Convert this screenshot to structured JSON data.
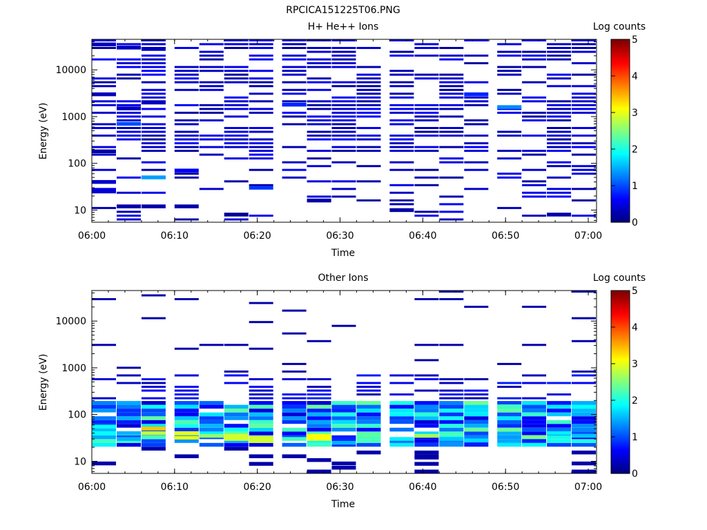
{
  "figure_title": "RPCICA151225T06.PNG",
  "colorbar": {
    "label": "Log counts",
    "min": 0,
    "max": 5,
    "ticks": [
      "0",
      "1",
      "2",
      "3",
      "4",
      "5"
    ]
  },
  "time_ticks": [
    "06:00",
    "06:10",
    "06:20",
    "06:30",
    "06:40",
    "06:50",
    "07:00"
  ],
  "energy_ticks": [
    "10",
    "100",
    "1000",
    "10000"
  ],
  "chart_data": [
    {
      "type": "heatmap",
      "title": "H+ He++ Ions",
      "xlabel": "Time",
      "ylabel": "Energy (eV)",
      "xlim": [
        "06:00",
        "07:01"
      ],
      "ylim": [
        5.5,
        45000
      ],
      "y_scale": "log",
      "z_label": "Log counts",
      "zlim": [
        0,
        5
      ],
      "colormap": "jet",
      "time_bins": [
        "06:00",
        "06:03",
        "06:06",
        "06:10",
        "06:13",
        "06:16",
        "06:19",
        "06:23",
        "06:26",
        "06:29",
        "06:32",
        "06:36",
        "06:39",
        "06:42",
        "06:45",
        "06:49",
        "06:52",
        "06:55",
        "06:58"
      ],
      "cells": [
        {
          "t": 0,
          "e": [
            35000,
            3000
          ],
          "v": 0.3
        },
        {
          "t": 0,
          "e": [
            180
          ],
          "v": 0.2
        },
        {
          "t": 0,
          "e": [
            40,
            25
          ],
          "v": 0.4
        },
        {
          "t": 1,
          "e": [
            30000,
            1500
          ],
          "v": 0.3
        },
        {
          "t": 1,
          "e": [
            700
          ],
          "v": 1.0
        },
        {
          "t": 1,
          "e": [
            12
          ],
          "v": 0.2
        },
        {
          "t": 2,
          "e": [
            28000,
            2000
          ],
          "v": 0.3
        },
        {
          "t": 2,
          "e": [
            50
          ],
          "v": 1.4
        },
        {
          "t": 2,
          "e": [
            12
          ],
          "v": 0.2
        },
        {
          "t": 3,
          "e": [
            70
          ],
          "v": 0.6
        },
        {
          "t": 3,
          "e": [
            12
          ],
          "v": 0.2
        },
        {
          "t": 5,
          "e": [
            8
          ],
          "v": 0.1
        },
        {
          "t": 6,
          "e": [
            30
          ],
          "v": 0.9
        },
        {
          "t": 7,
          "e": [
            1800
          ],
          "v": 0.8
        },
        {
          "t": 8,
          "e": [
            16
          ],
          "v": 0.2
        },
        {
          "t": 11,
          "e": [
            10
          ],
          "v": 0.2
        },
        {
          "t": 14,
          "e": [
            3000
          ],
          "v": 0.8
        },
        {
          "t": 15,
          "e": [
            1600
          ],
          "v": 1.3
        },
        {
          "t": 17,
          "e": [
            8
          ],
          "v": 0.2
        }
      ]
    },
    {
      "type": "heatmap",
      "title": "Other Ions",
      "xlabel": "Time",
      "ylabel": "Energy (eV)",
      "xlim": [
        "06:00",
        "07:01"
      ],
      "ylim": [
        5.5,
        45000
      ],
      "y_scale": "log",
      "z_label": "Log counts",
      "zlim": [
        0,
        5
      ],
      "colormap": "jet",
      "time_bins": [
        "06:00",
        "06:03",
        "06:06",
        "06:10",
        "06:13",
        "06:16",
        "06:19",
        "06:23",
        "06:26",
        "06:29",
        "06:32",
        "06:36",
        "06:39",
        "06:42",
        "06:45",
        "06:49",
        "06:52",
        "06:55",
        "06:58"
      ],
      "cells": [
        {
          "t": 0,
          "e": [
            55,
            40
          ],
          "v": 1.9
        },
        {
          "t": 0,
          "e": [
            9
          ],
          "v": 0.2
        },
        {
          "t": 1,
          "e": [
            40,
            30
          ],
          "v": 1.5
        },
        {
          "t": 2,
          "e": [
            50
          ],
          "v": 3.4
        },
        {
          "t": 2,
          "e": [
            40
          ],
          "v": 2.8
        },
        {
          "t": 3,
          "e": [
            40,
            32
          ],
          "v": 3.0
        },
        {
          "t": 4,
          "e": [
            35
          ],
          "v": 2.6
        },
        {
          "t": 5,
          "e": [
            35,
            30
          ],
          "v": 2.9
        },
        {
          "t": 6,
          "e": [
            32,
            27
          ],
          "v": 2.9
        },
        {
          "t": 7,
          "e": [
            30
          ],
          "v": 2.2
        },
        {
          "t": 8,
          "e": [
            35,
            30
          ],
          "v": 3.1
        },
        {
          "t": 9,
          "e": [
            25
          ],
          "v": 1.5
        },
        {
          "t": 10,
          "e": [
            35
          ],
          "v": 2.3
        },
        {
          "t": 11,
          "e": [
            30
          ],
          "v": 1.8
        },
        {
          "t": 12,
          "e": [
            35
          ],
          "v": 2.7
        },
        {
          "t": 13,
          "e": [
            30
          ],
          "v": 1.6
        },
        {
          "t": 14,
          "e": [
            28
          ],
          "v": 1.7
        },
        {
          "t": 15,
          "e": [
            150
          ],
          "v": 2.2
        },
        {
          "t": 16,
          "e": [
            33
          ],
          "v": 2.5
        },
        {
          "t": 17,
          "e": [
            40
          ],
          "v": 1.8
        },
        {
          "t": 18,
          "e": [
            35
          ],
          "v": 1.6
        },
        {
          "t": 9,
          "e": [
            9
          ],
          "v": 0.2
        },
        {
          "t": 12,
          "e": [
            12
          ],
          "v": 0.2
        },
        {
          "t": 18,
          "e": [
            9
          ],
          "v": 0.2
        }
      ]
    }
  ]
}
